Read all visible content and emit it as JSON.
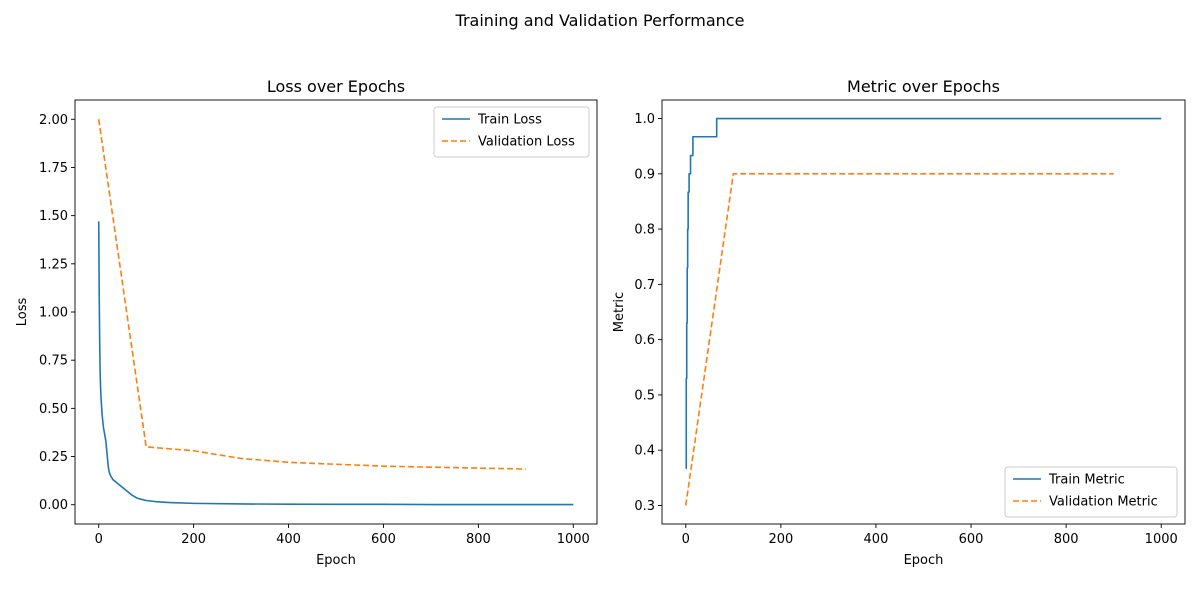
{
  "suptitle": "Training and Validation Performance",
  "colors": {
    "train": "#1f77b4",
    "validation": "#ff7f0e"
  },
  "chart_data": [
    {
      "type": "line",
      "title": "Loss over Epochs",
      "xlabel": "Epoch",
      "ylabel": "Loss",
      "xlim": [
        -50,
        1050
      ],
      "ylim": [
        -0.1,
        2.1
      ],
      "xticks": [
        0,
        200,
        400,
        600,
        800,
        1000
      ],
      "xtick_labels": [
        "0",
        "200",
        "400",
        "600",
        "800",
        "1000"
      ],
      "yticks": [
        0,
        0.25,
        0.5,
        0.75,
        1.0,
        1.25,
        1.5,
        1.75,
        2.0
      ],
      "ytick_labels": [
        "0.00",
        "0.25",
        "0.50",
        "0.75",
        "1.00",
        "1.25",
        "1.50",
        "1.75",
        "2.00"
      ],
      "legend": "top-right",
      "series": [
        {
          "name": "Train Loss",
          "style": "solid",
          "color": "#1f77b4",
          "x": [
            0,
            1,
            2,
            3,
            4,
            5,
            7,
            10,
            15,
            20,
            22,
            25,
            30,
            40,
            50,
            60,
            70,
            80,
            90,
            100,
            120,
            150,
            200,
            300,
            400,
            500,
            600,
            700,
            800,
            900,
            1000
          ],
          "y": [
            1.47,
            1.1,
            0.85,
            0.68,
            0.6,
            0.55,
            0.47,
            0.4,
            0.33,
            0.2,
            0.17,
            0.15,
            0.13,
            0.11,
            0.09,
            0.07,
            0.05,
            0.035,
            0.028,
            0.022,
            0.016,
            0.011,
            0.007,
            0.004,
            0.003,
            0.002,
            0.002,
            0.001,
            0.001,
            0.001,
            0.001
          ]
        },
        {
          "name": "Validation Loss",
          "style": "dashed",
          "color": "#ff7f0e",
          "x": [
            0,
            100,
            200,
            300,
            400,
            500,
            600,
            700,
            800,
            900
          ],
          "y": [
            2.0,
            0.3,
            0.28,
            0.24,
            0.22,
            0.21,
            0.2,
            0.195,
            0.19,
            0.185
          ]
        }
      ]
    },
    {
      "type": "line",
      "title": "Metric over Epochs",
      "xlabel": "Epoch",
      "ylabel": "Metric",
      "xlim": [
        -50,
        1050
      ],
      "ylim": [
        0.2665,
        1.0335
      ],
      "xticks": [
        0,
        200,
        400,
        600,
        800,
        1000
      ],
      "xtick_labels": [
        "0",
        "200",
        "400",
        "600",
        "800",
        "1000"
      ],
      "yticks": [
        0.3,
        0.4,
        0.5,
        0.6,
        0.7,
        0.8,
        0.9,
        1.0
      ],
      "ytick_labels": [
        "0.3",
        "0.4",
        "0.5",
        "0.6",
        "0.7",
        "0.8",
        "0.9",
        "1.0"
      ],
      "legend": "bottom-right",
      "series": [
        {
          "name": "Train Metric",
          "style": "solid",
          "color": "#1f77b4",
          "x": [
            0,
            1,
            1,
            2,
            2,
            3,
            3,
            4,
            4,
            5,
            5,
            7,
            7,
            10,
            10,
            15,
            15,
            20,
            20,
            65,
            65,
            1000
          ],
          "y": [
            0.367,
            0.367,
            0.53,
            0.53,
            0.63,
            0.63,
            0.73,
            0.73,
            0.8,
            0.8,
            0.867,
            0.867,
            0.9,
            0.9,
            0.933,
            0.933,
            0.967,
            0.967,
            0.967,
            0.967,
            1.0,
            1.0
          ]
        },
        {
          "name": "Validation Metric",
          "style": "dashed",
          "color": "#ff7f0e",
          "x": [
            0,
            100,
            200,
            300,
            400,
            500,
            600,
            700,
            800,
            900
          ],
          "y": [
            0.3,
            0.9,
            0.9,
            0.9,
            0.9,
            0.9,
            0.9,
            0.9,
            0.9,
            0.9
          ]
        }
      ]
    }
  ]
}
